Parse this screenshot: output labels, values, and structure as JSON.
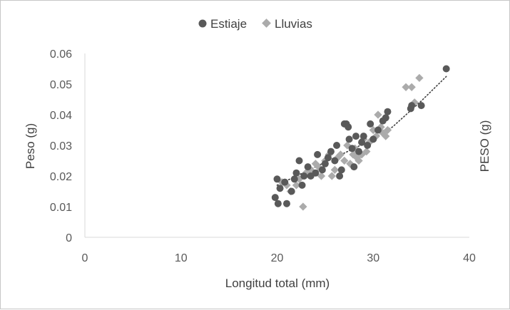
{
  "chart_data": {
    "type": "scatter",
    "xlabel": "Longitud total (mm)",
    "ylabel": "Peso (g)",
    "ylabel_right": "PESO (g)",
    "xlim": [
      0,
      40
    ],
    "ylim": [
      0,
      0.06
    ],
    "x_ticks": [
      "0",
      "10",
      "20",
      "30",
      "40"
    ],
    "y_ticks": [
      "0",
      "0.01",
      "0.02",
      "0.03",
      "0.04",
      "0.05",
      "0.06"
    ],
    "grid": false,
    "legend_position": "top-center",
    "trendline": {
      "style": "dotted",
      "x": [
        20,
        23,
        26,
        29,
        32,
        35,
        37.6
      ],
      "y": [
        0.017,
        0.0215,
        0.026,
        0.0305,
        0.036,
        0.0445,
        0.0525
      ]
    },
    "series": [
      {
        "name": "Estiaje",
        "marker": "circle",
        "color": "#595959",
        "points": [
          [
            19.8,
            0.013
          ],
          [
            20.0,
            0.019
          ],
          [
            20.1,
            0.011
          ],
          [
            20.3,
            0.016
          ],
          [
            20.8,
            0.018
          ],
          [
            21.0,
            0.011
          ],
          [
            21.5,
            0.015
          ],
          [
            21.8,
            0.019
          ],
          [
            22.0,
            0.021
          ],
          [
            22.3,
            0.025
          ],
          [
            22.6,
            0.017
          ],
          [
            22.8,
            0.02
          ],
          [
            23.2,
            0.023
          ],
          [
            23.5,
            0.02
          ],
          [
            24.0,
            0.021
          ],
          [
            24.2,
            0.027
          ],
          [
            24.7,
            0.022
          ],
          [
            25.0,
            0.024
          ],
          [
            25.3,
            0.026
          ],
          [
            25.6,
            0.028
          ],
          [
            26.0,
            0.025
          ],
          [
            26.2,
            0.03
          ],
          [
            26.5,
            0.02
          ],
          [
            26.7,
            0.022
          ],
          [
            27.0,
            0.037
          ],
          [
            27.2,
            0.037
          ],
          [
            27.4,
            0.036
          ],
          [
            27.5,
            0.032
          ],
          [
            27.8,
            0.029
          ],
          [
            28.0,
            0.023
          ],
          [
            28.2,
            0.033
          ],
          [
            28.5,
            0.028
          ],
          [
            28.8,
            0.031
          ],
          [
            29.0,
            0.033
          ],
          [
            29.4,
            0.03
          ],
          [
            29.7,
            0.037
          ],
          [
            30.0,
            0.032
          ],
          [
            30.5,
            0.035
          ],
          [
            31.0,
            0.038
          ],
          [
            31.3,
            0.039
          ],
          [
            31.5,
            0.041
          ],
          [
            33.9,
            0.042
          ],
          [
            34.0,
            0.043
          ],
          [
            35.0,
            0.043
          ],
          [
            37.6,
            0.055
          ]
        ]
      },
      {
        "name": "Lluvias",
        "marker": "diamond",
        "color": "#ababab",
        "points": [
          [
            20.5,
            0.018
          ],
          [
            21.0,
            0.017
          ],
          [
            21.4,
            0.015
          ],
          [
            22.0,
            0.017
          ],
          [
            22.3,
            0.019
          ],
          [
            22.7,
            0.01
          ],
          [
            23.0,
            0.021
          ],
          [
            23.5,
            0.022
          ],
          [
            24.0,
            0.024
          ],
          [
            24.3,
            0.023
          ],
          [
            24.6,
            0.02
          ],
          [
            25.0,
            0.025
          ],
          [
            25.4,
            0.027
          ],
          [
            25.7,
            0.02
          ],
          [
            26.0,
            0.022
          ],
          [
            26.3,
            0.026
          ],
          [
            26.6,
            0.027
          ],
          [
            27.0,
            0.025
          ],
          [
            27.3,
            0.03
          ],
          [
            27.6,
            0.024
          ],
          [
            27.9,
            0.027
          ],
          [
            28.1,
            0.029
          ],
          [
            28.3,
            0.026
          ],
          [
            28.5,
            0.025
          ],
          [
            28.8,
            0.027
          ],
          [
            29.0,
            0.032
          ],
          [
            29.3,
            0.028
          ],
          [
            29.6,
            0.031
          ],
          [
            30.0,
            0.035
          ],
          [
            30.3,
            0.033
          ],
          [
            30.5,
            0.04
          ],
          [
            30.8,
            0.036
          ],
          [
            31.0,
            0.034
          ],
          [
            31.3,
            0.033
          ],
          [
            31.5,
            0.035
          ],
          [
            33.4,
            0.049
          ],
          [
            34.0,
            0.049
          ],
          [
            34.3,
            0.044
          ],
          [
            34.8,
            0.052
          ]
        ]
      }
    ]
  }
}
